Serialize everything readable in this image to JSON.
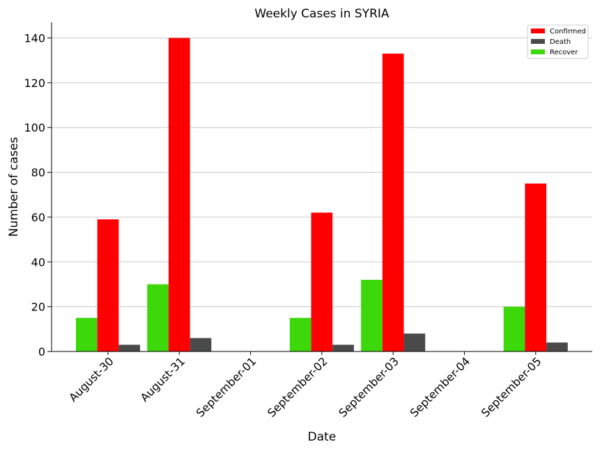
{
  "chart_data": {
    "type": "bar",
    "title": "Weekly Cases in SYRIA",
    "xlabel": "Date",
    "ylabel": "Number of cases",
    "categories": [
      "August-30",
      "August-31",
      "September-01",
      "September-02",
      "September-03",
      "September-04",
      "September-05"
    ],
    "series": [
      {
        "name": "Recover",
        "color": "#3cd80a",
        "values": [
          15,
          30,
          0,
          15,
          32,
          0,
          20
        ]
      },
      {
        "name": "Confirmed",
        "color": "#ff0000",
        "values": [
          59,
          140,
          0,
          62,
          133,
          0,
          75
        ]
      },
      {
        "name": "Death",
        "color": "#4a4a4a",
        "values": [
          3,
          6,
          0,
          3,
          8,
          0,
          4
        ]
      }
    ],
    "legend_order": [
      "Confirmed",
      "Death",
      "Recover"
    ],
    "legend_position": "top-right",
    "ylim": [
      0,
      147
    ],
    "yticks": [
      0,
      20,
      40,
      60,
      80,
      100,
      120,
      140
    ],
    "grid": "horizontal"
  }
}
